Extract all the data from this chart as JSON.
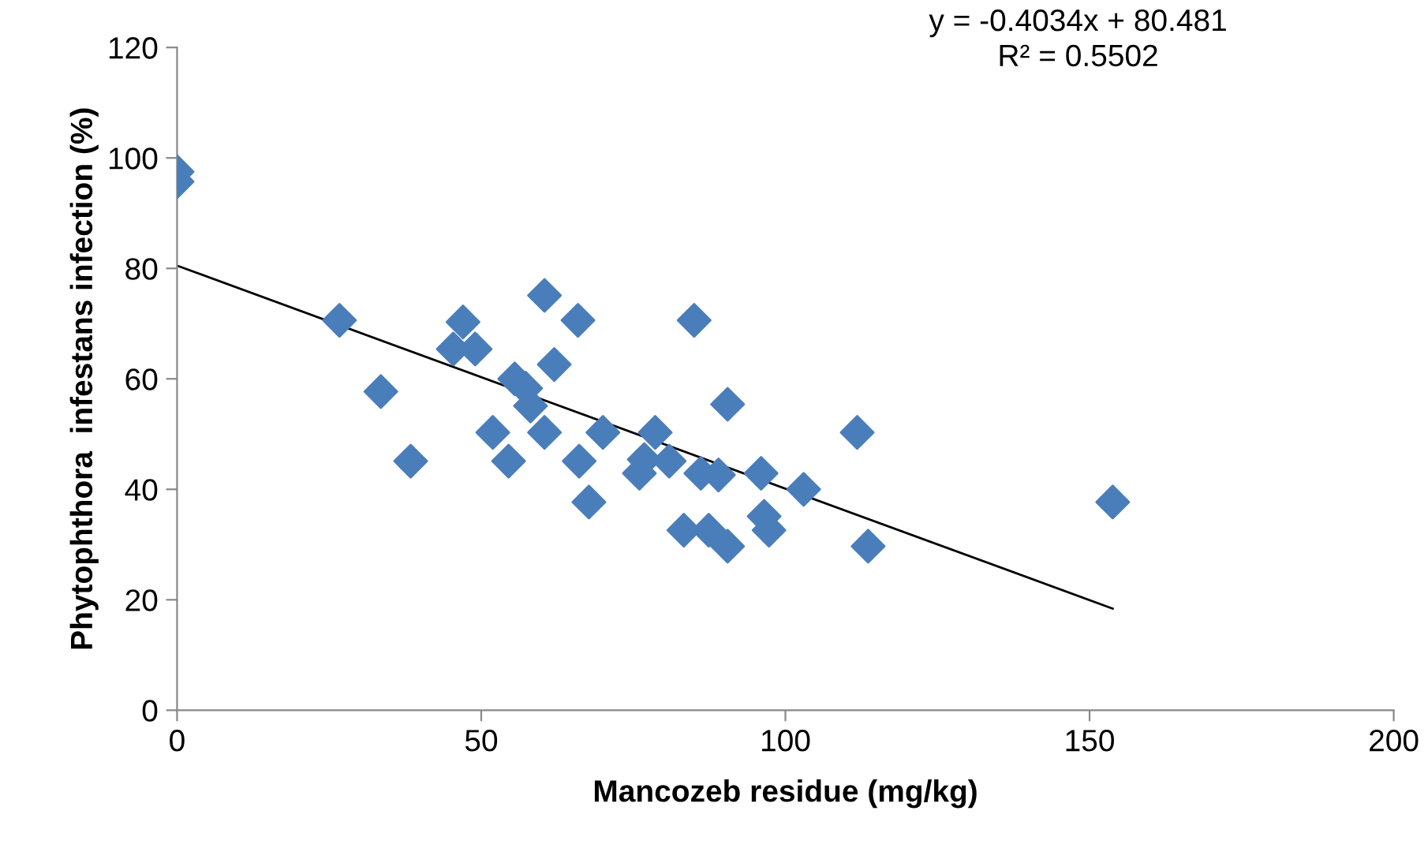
{
  "chart_data": {
    "type": "scatter",
    "xlabel": "Mancozeb residue (mg/kg)",
    "ylabel": "Phytophthora  infestans infection (%)",
    "xlim": [
      0,
      200
    ],
    "xticks": [
      0,
      50,
      100,
      150,
      200
    ],
    "ylim": [
      0,
      120
    ],
    "yticks": [
      0,
      20,
      40,
      60,
      80,
      100,
      120
    ],
    "grid": false,
    "legend": false,
    "annotations": [
      "y = -0.4034x + 80.481\nR² = 0.5502"
    ],
    "series": [
      {
        "color": "#4a7ebb",
        "marker": "diamond",
        "x": [
          0,
          0,
          26.7,
          33.5,
          38.4,
          45.4,
          47,
          49,
          51.9,
          54.5,
          55.5,
          57.3,
          58.1,
          60.4,
          60.4,
          62,
          65.9,
          66.1,
          67.7,
          70,
          76,
          76.8,
          78.6,
          80.9,
          83.3,
          85,
          86.1,
          87.4,
          89,
          90.5,
          90.5,
          96,
          96.5,
          97.3,
          103,
          111.8,
          113.6,
          153.8
        ],
        "values": [
          97.5,
          95.7,
          70.6,
          57.7,
          45.1,
          65.4,
          70.3,
          65.4,
          50.3,
          45.1,
          60,
          58.3,
          55.1,
          75.1,
          50.3,
          62.6,
          70.6,
          45.1,
          37.7,
          50.3,
          42.9,
          45.4,
          50.3,
          45.1,
          32.6,
          70.6,
          42.9,
          32.6,
          42.6,
          55.4,
          29.7,
          42.9,
          35.1,
          32.6,
          40,
          50.3,
          29.7,
          37.7
        ]
      },
      {
        "type": "line",
        "color": "#000000",
        "marker": "none",
        "line_style": "solid",
        "x": [
          0,
          153.8
        ],
        "values": [
          80.5,
          18.4
        ]
      }
    ]
  }
}
